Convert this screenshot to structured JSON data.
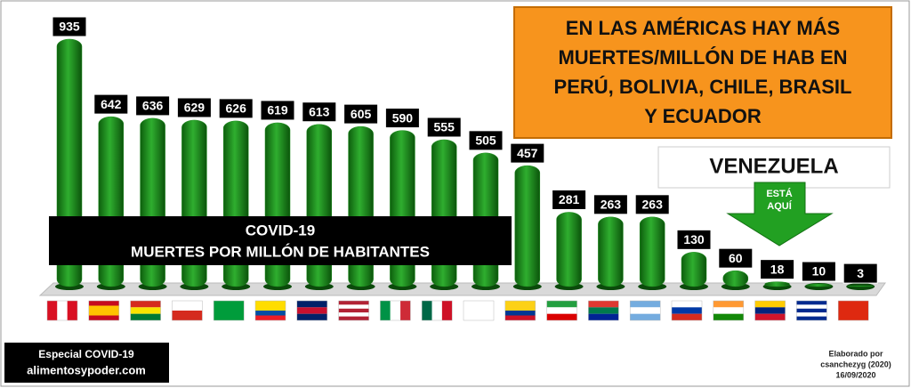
{
  "chart_data": {
    "type": "bar",
    "title_lines": [
      "EN LAS AMÉRICAS HAY MÁS",
      "MUERTES/MILLÓN DE HAB EN",
      "PERÚ, BOLIVIA, CHILE, BRASIL",
      "Y ECUADOR"
    ],
    "annotation": "VENEZUELA",
    "arrow_label_lines": [
      "ESTÁ",
      "AQUÍ"
    ],
    "banner_lines": [
      "COVID-19",
      "MUERTES POR MILLÓN DE HABITANTES"
    ],
    "categories": [
      null,
      null,
      null,
      null,
      null,
      null,
      null,
      null,
      null,
      null,
      null,
      null,
      null,
      null,
      null,
      null,
      null,
      null,
      null,
      null
    ],
    "values": [
      935,
      642,
      636,
      629,
      626,
      619,
      613,
      605,
      590,
      555,
      505,
      457,
      281,
      263,
      263,
      130,
      60,
      18,
      10,
      3
    ],
    "color": "#1f8f1f",
    "source_lines": [
      "Especial  COVID-19",
      "alimentosypoder.com"
    ],
    "credit_lines": [
      "Elaborado por",
      "csanchezyg (2020)",
      "16/09/2020"
    ]
  }
}
